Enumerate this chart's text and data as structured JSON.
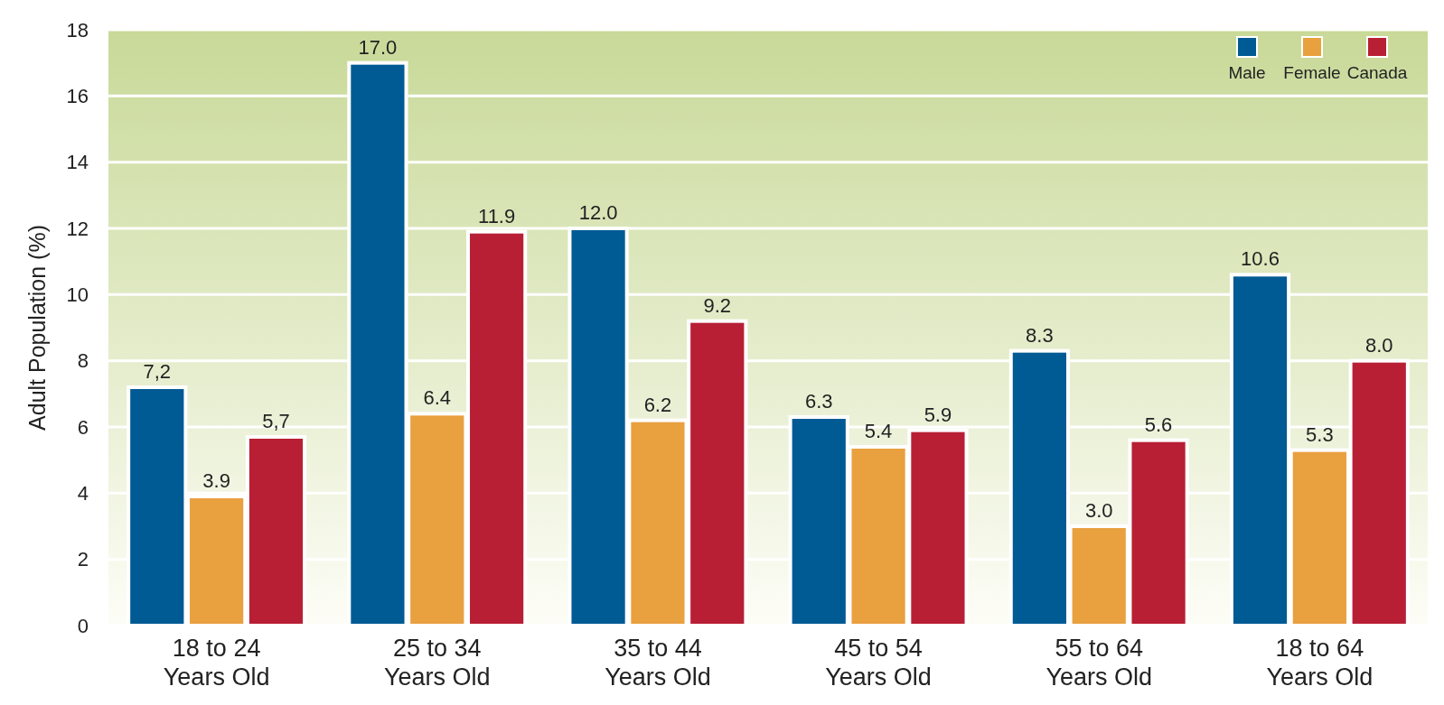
{
  "chart_data": {
    "type": "bar",
    "ylabel": "Adult Population (%)",
    "categories": [
      "18 to 24\nYears Old",
      "25 to 34\nYears Old",
      "35 to 44\nYears Old",
      "45 to 54\nYears Old",
      "55 to 64\nYears Old",
      "18 to 64\nYears Old"
    ],
    "series": [
      {
        "name": "Male",
        "color": "#005a94",
        "values": [
          7.2,
          17.0,
          12.0,
          6.3,
          8.3,
          10.6
        ],
        "value_labels": [
          "7,2",
          "17.0",
          "12.0",
          "6.3",
          "8.3",
          "10.6"
        ]
      },
      {
        "name": "Female",
        "color": "#e9a03f",
        "values": [
          3.9,
          6.4,
          6.2,
          5.4,
          3.0,
          5.3
        ],
        "value_labels": [
          "3.9",
          "6.4",
          "6.2",
          "5.4",
          "3.0",
          "5.3"
        ]
      },
      {
        "name": "Canada",
        "color": "#b81f34",
        "values": [
          5.7,
          11.9,
          9.2,
          5.9,
          5.6,
          8.0
        ],
        "value_labels": [
          "5,7",
          "11.9",
          "9.2",
          "5.9",
          "5.6",
          "8.0"
        ]
      }
    ],
    "ylim": [
      0,
      18
    ],
    "yticks": [
      0,
      2,
      4,
      6,
      8,
      10,
      12,
      14,
      16,
      18
    ],
    "grid": "y",
    "legend": "top right"
  }
}
